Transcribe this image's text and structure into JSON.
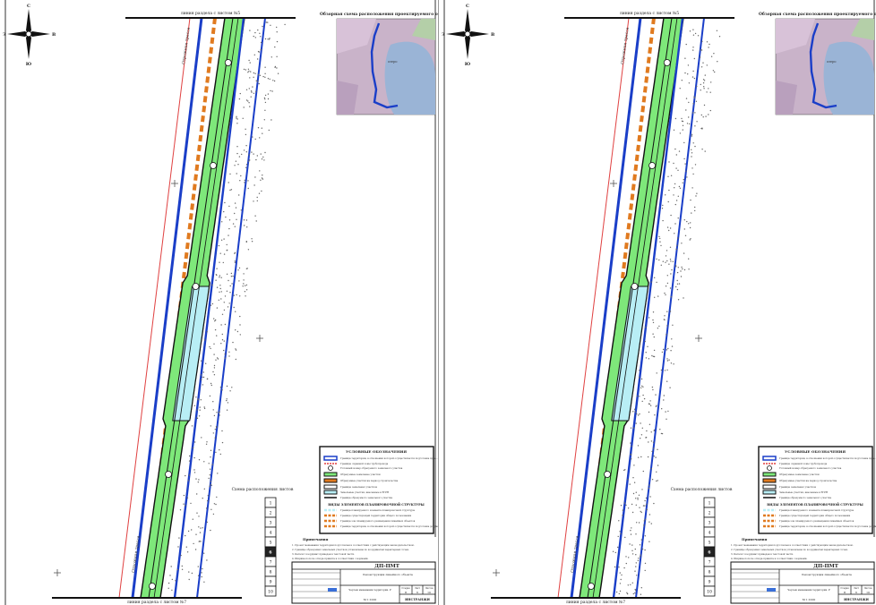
{
  "sheet": {
    "top_match_label": "линия раздела с листом №5",
    "bottom_match_label": "линия раздела с листом №7",
    "overview_title": "Обзорная схема расположения проектируемого объекта",
    "overview_water_label": "озеро",
    "road_label": "Отрожная трасса",
    "north_arrow": {
      "n": "С",
      "s": "Ю",
      "w": "З",
      "e": "В"
    },
    "layout_title": "Схема расположения листов",
    "sheet_numbers": [
      "1",
      "2",
      "3",
      "4",
      "5",
      "6",
      "7",
      "8",
      "9",
      "10"
    ],
    "current_sheet": "6",
    "legend": {
      "title": "УСЛОВНЫЕ ОБОЗНАЧЕНИЯ",
      "items": [
        "Граница территории, в отношении которой осуществляется подготовка проекта межевания и проекта планировки территории",
        "Границы охранной зоны трубопровода",
        "Условный номер образуемого земельного участка",
        "Образуемые земельные участки",
        "Образуемые участки на период строительства",
        "Границы земельных участков",
        "Земельные участки, внесенные в ЕГРН",
        "Граница образуемого земельного участка"
      ],
      "section_title": "ВИДЫ ЭЛЕМЕНТОВ ПЛАНИРОВОЧНОЙ СТРУКТУРЫ",
      "section_items": [
        "Граница планируемого элемента планировочной структуры",
        "Граница существующей территории общего пользования",
        "Граница зон планируемого размещения линейных объектов",
        "Граница территории, в отношении которой осуществляется подготовка документации"
      ]
    },
    "notes_title": "Примечания",
    "notes": [
      "1. Проект межевания территории подготовлен в соответствии с действующим законодательством.",
      "2. Границы образуемых земельных участков установлены по координатам характерных точек.",
      "3. Каталог координат приведен в текстовой части.",
      "4. Ширина полосы отвода принята в соответствии с нормами."
    ],
    "stamp": {
      "code": "ДП-ПМТ",
      "object": "Реконструкция линейного объекта",
      "drawing_name": "Чертеж межевания территории. Разбивочный чертеж",
      "stage": "П",
      "sheet": "6",
      "sheets": "10",
      "org": "ИНСТРАНЖИ",
      "label_stage": "Стадия",
      "label_sheet": "Лист",
      "label_sheets": "Листов",
      "scale": "М 1:1000"
    }
  },
  "colors": {
    "boundary": "#1a3ec8",
    "hatch": "#e07a1f",
    "zone_green": "#7ee87a",
    "zone_cyan": "#b8eef5",
    "red_line": "#e04040",
    "map_bg": "#c9b3c9",
    "map_water": "#9ab4d6"
  }
}
